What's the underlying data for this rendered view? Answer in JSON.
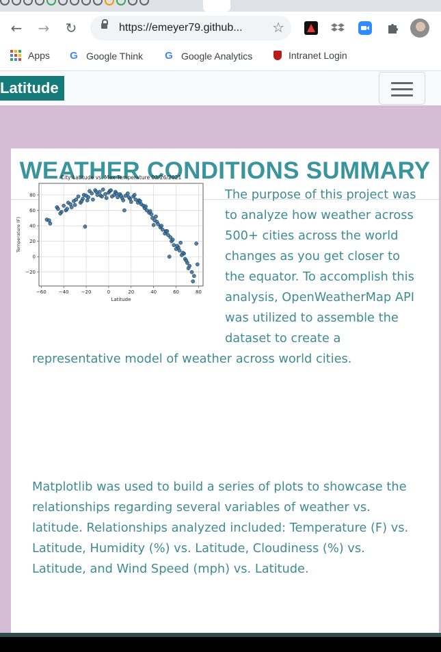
{
  "browser": {
    "url": "https://emeyer79.github...",
    "bookmarks": [
      "Apps",
      "Google Think",
      "Google Analytics",
      "Intranet Login"
    ]
  },
  "site": {
    "brand": "Latitude",
    "title": "WEATHER CONDITIONS SUMMARY",
    "paragraph1": "The purpose of this project was to analyze how weather across 500+ cities across the world changes as you get closer to the equator. To accomplish this analysis, OpenWeatherMap API was utilized to assemble the dataset to create a representative model of weather across world cities.",
    "paragraph2": "Matplotlib was used to build a series of plots to showcase the relationships regarding several variables of weather vs. latitude. Relationships analyzed included: Temperature (F) vs. Latitude, Humidity (%) vs. Latitude, Cloudiness (%) vs. Latitude, and Wind Speed (mph) vs. Latitude."
  },
  "chart_data": {
    "type": "scatter",
    "title": "City Latitude vs. Max Temperature 03/26/2021",
    "xlabel": "Latitude",
    "ylabel": "Temperature (F)",
    "xlim": [
      -62,
      84
    ],
    "ylim": [
      -38,
      95
    ],
    "xticks": [
      -60,
      -40,
      -20,
      0,
      20,
      40,
      60,
      80
    ],
    "yticks": [
      -20,
      0,
      20,
      40,
      60,
      80
    ],
    "grid": true,
    "marker_color": "#2f6f9f",
    "x": [
      -55,
      -53,
      -52,
      -46,
      -45,
      -42,
      -40,
      -38,
      -36,
      -34,
      -33,
      -31,
      -29,
      -27,
      -25,
      -23,
      -22,
      -20,
      -19,
      -17,
      -15,
      -14,
      -12,
      -10,
      -8,
      -7,
      -5,
      -3,
      -2,
      0,
      1,
      3,
      5,
      6,
      8,
      10,
      12,
      13,
      15,
      17,
      19,
      20,
      22,
      24,
      26,
      27,
      29,
      31,
      32,
      34,
      36,
      38,
      39,
      41,
      43,
      44,
      46,
      48,
      50,
      51,
      53,
      55,
      56,
      58,
      60,
      62,
      63,
      65,
      67,
      68,
      70,
      72,
      74,
      76,
      78,
      -43,
      -37,
      -30,
      -24,
      -18,
      -11,
      -6,
      2,
      7,
      11,
      18,
      23,
      28,
      33,
      37,
      42,
      47,
      52,
      57,
      61,
      66,
      71,
      75,
      79,
      -21,
      14,
      40,
      54,
      64,
      69
    ],
    "y": [
      48,
      47,
      43,
      64,
      62,
      58,
      66,
      60,
      70,
      68,
      64,
      72,
      74,
      78,
      70,
      75,
      80,
      79,
      73,
      85,
      82,
      74,
      86,
      80,
      84,
      79,
      87,
      81,
      76,
      83,
      85,
      78,
      80,
      84,
      77,
      81,
      76,
      73,
      79,
      82,
      75,
      71,
      78,
      74,
      70,
      73,
      68,
      66,
      63,
      60,
      57,
      55,
      50,
      47,
      45,
      42,
      38,
      35,
      30,
      33,
      28,
      25,
      20,
      15,
      10,
      12,
      8,
      2,
      4,
      -3,
      -8,
      -12,
      -20,
      -25,
      17,
      56,
      62,
      67,
      72,
      77,
      84,
      78,
      86,
      82,
      79,
      77,
      80,
      72,
      65,
      59,
      52,
      40,
      33,
      22,
      14,
      5,
      -15,
      -32,
      -10,
      39,
      60,
      41,
      0,
      18,
      -5
    ]
  }
}
